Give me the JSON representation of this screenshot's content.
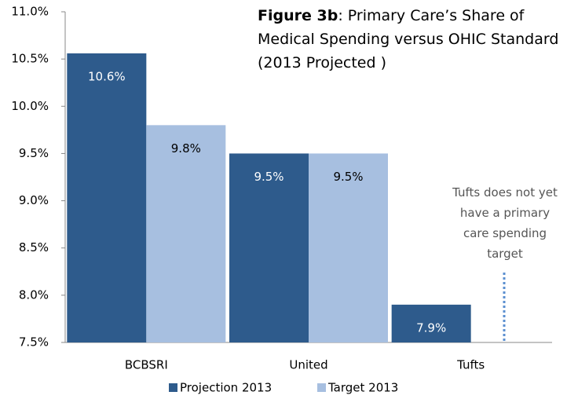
{
  "chart_data": {
    "type": "bar",
    "title_bold": "Figure 3b",
    "title": ": Primary Care’s Share of Medical Spending versus OHIC Standard (2013 Projected )",
    "annotation": "Tufts does not yet have a primary care spending target",
    "categories": [
      "BCBSRI",
      "United",
      "Tufts"
    ],
    "series": [
      {
        "name": "Projection 2013",
        "color": "#2e5b8c",
        "values": [
          10.56,
          9.5,
          7.9
        ],
        "value_labels": [
          "10.6%",
          "9.5%",
          "7.9%"
        ]
      },
      {
        "name": "Target 2013",
        "color": "#a7bfe0",
        "values": [
          9.8,
          9.5,
          null
        ],
        "value_labels": [
          "9.8%",
          "9.5%",
          null
        ]
      }
    ],
    "ylim": [
      7.5,
      11.0
    ],
    "yticks": [
      {
        "value": 7.5,
        "label": "7.5%"
      },
      {
        "value": 8.0,
        "label": "8.0%"
      },
      {
        "value": 8.5,
        "label": "8.5%"
      },
      {
        "value": 9.0,
        "label": "9.0%"
      },
      {
        "value": 9.5,
        "label": "9.5%"
      },
      {
        "value": 10.0,
        "label": "10.0%"
      },
      {
        "value": 10.5,
        "label": "10.5%"
      },
      {
        "value": 11.0,
        "label": "11.0%"
      }
    ],
    "legend": "bottom"
  }
}
